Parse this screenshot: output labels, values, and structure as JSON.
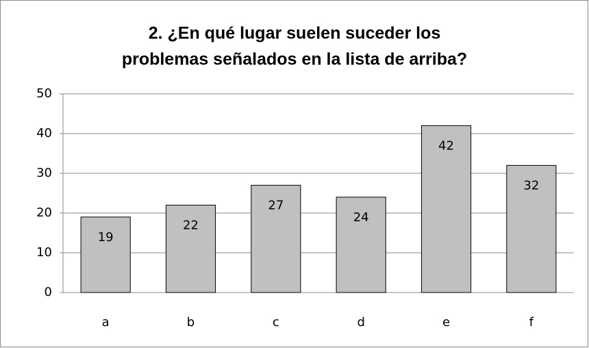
{
  "chart_data": {
    "type": "bar",
    "title": [
      "2. ¿En qué lugar suelen suceder los",
      "problemas señalados en la lista de arriba?"
    ],
    "categories": [
      "a",
      "b",
      "c",
      "d",
      "e",
      "f"
    ],
    "values": [
      19,
      22,
      27,
      24,
      42,
      32
    ],
    "color": "#c0c0c0",
    "ylim": [
      0,
      50
    ],
    "yticks": [
      0,
      10,
      20,
      30,
      40,
      50
    ],
    "grid": true
  }
}
